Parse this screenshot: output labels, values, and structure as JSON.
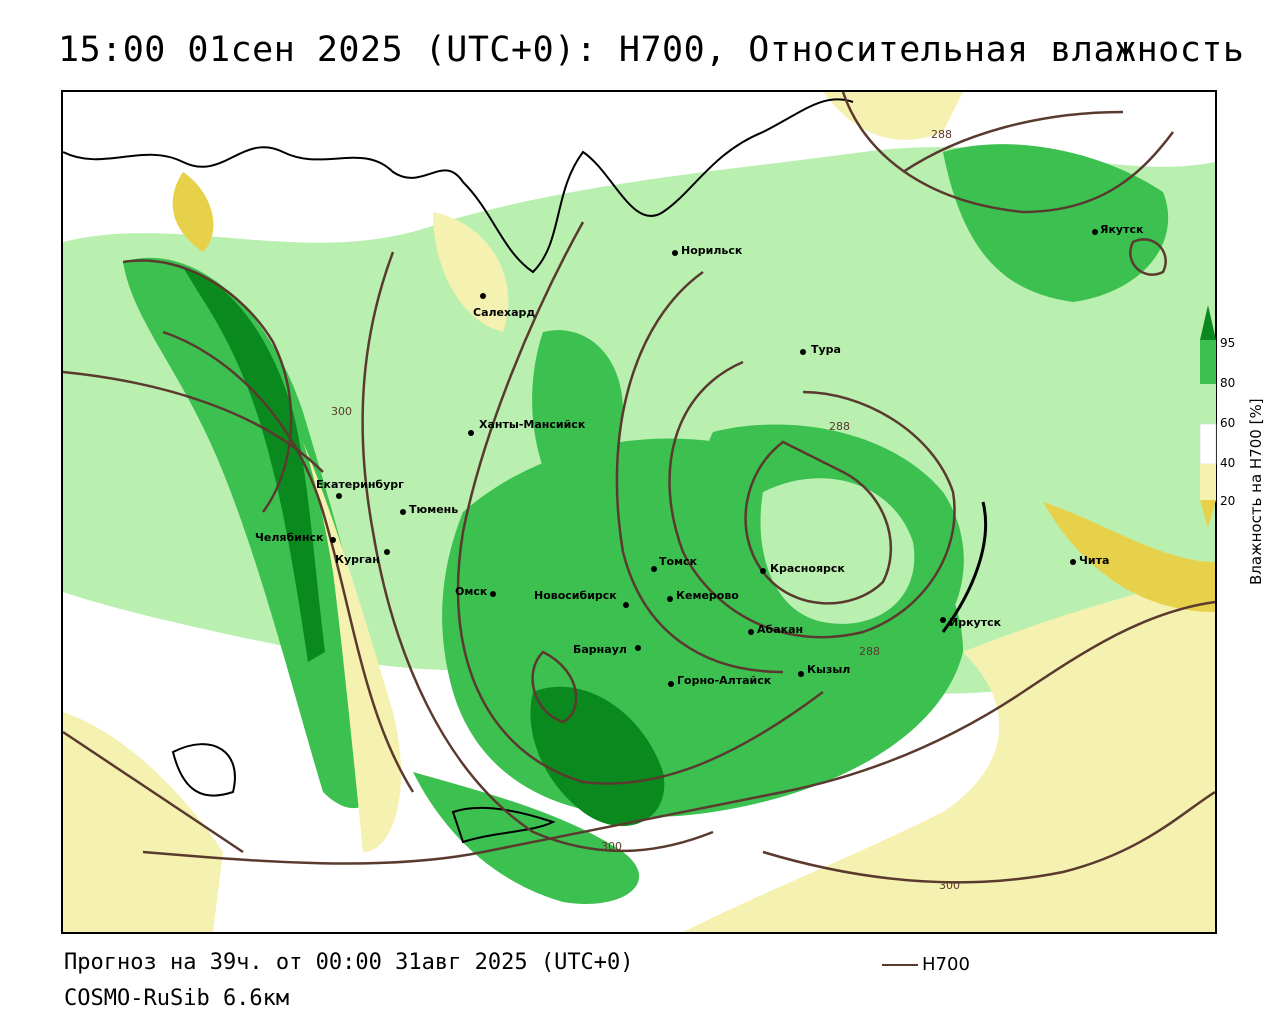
{
  "title": "15:00 01сен 2025 (UTC+0): H700, Относительная влажность",
  "forecast_line": "Прогноз на 39ч. от 00:00 31авг 2025 (UTC+0)",
  "model_line": "COSMO-RuSib 6.6км",
  "key_label": "H700",
  "legend": {
    "title": "Влажность на H700 [%]",
    "ticks": [
      "95",
      "80",
      "60",
      "40",
      "20"
    ],
    "colors": [
      "#0a8a1e",
      "#3cc050",
      "#b9f0b0",
      "#ffffff",
      "#f5f1b0",
      "#e8d14a",
      "#c9a818"
    ]
  },
  "contour_labels": [
    "288",
    "300",
    "288",
    "288",
    "300",
    "300"
  ],
  "cities": [
    {
      "name": "Норильск"
    },
    {
      "name": "Якутск"
    },
    {
      "name": "Салехард"
    },
    {
      "name": "Тура"
    },
    {
      "name": "Ханты-Мансийск"
    },
    {
      "name": "Екатеринбург"
    },
    {
      "name": "Тюмень"
    },
    {
      "name": "Челябинск"
    },
    {
      "name": "Курган"
    },
    {
      "name": "Томск"
    },
    {
      "name": "Красноярск"
    },
    {
      "name": "Омск"
    },
    {
      "name": "Новосибирск"
    },
    {
      "name": "Кемерово"
    },
    {
      "name": "Абакан"
    },
    {
      "name": "Барнаул"
    },
    {
      "name": "Горно-Алтайск"
    },
    {
      "name": "Кызыл"
    },
    {
      "name": "Иркутск"
    },
    {
      "name": "Чита"
    }
  ],
  "colors": {
    "contour": "#5a3a2e",
    "green_dark": "#0a8a1e",
    "green_mid": "#3cc050",
    "green_light": "#b9f0b0",
    "yellow_light": "#f5f1b0",
    "yellow_mid": "#e8d14a"
  }
}
